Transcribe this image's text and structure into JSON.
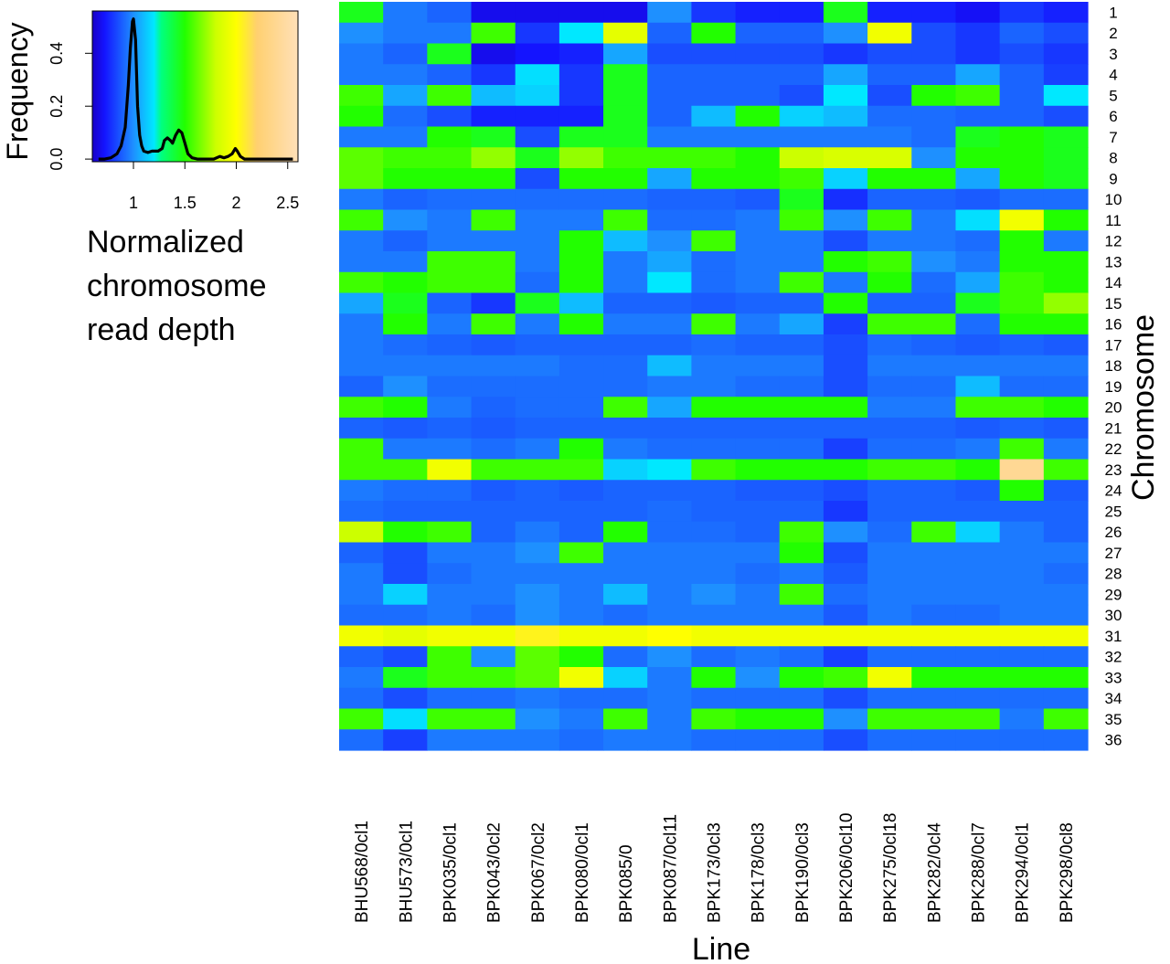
{
  "chart_data": [
    {
      "type": "area",
      "title": "",
      "xlabel": "Normalized chromosome read depth",
      "xlabel_lines": [
        "Normalized",
        "chromosome",
        "read depth"
      ],
      "ylabel": "Frequency",
      "xlim": [
        0.6,
        2.6
      ],
      "ylim": [
        -0.01,
        0.56
      ],
      "xticks": [
        1,
        1.5,
        2,
        2.5
      ],
      "xtick_labels": [
        "1",
        "1.5",
        "2",
        "2.5"
      ],
      "yticks": [
        0.0,
        0.2,
        0.4
      ],
      "ytick_labels": [
        "0.0",
        "0.2",
        "0.4"
      ],
      "color_key": {
        "stops": [
          {
            "x": 0.6,
            "color": "#1a00c8"
          },
          {
            "x": 0.72,
            "color": "#1414ff"
          },
          {
            "x": 1.0,
            "color": "#1e90ff"
          },
          {
            "x": 1.2,
            "color": "#00e8ff"
          },
          {
            "x": 1.27,
            "color": "#00ff80"
          },
          {
            "x": 1.5,
            "color": "#22ff00"
          },
          {
            "x": 1.8,
            "color": "#ccff00"
          },
          {
            "x": 2.0,
            "color": "#ffff00"
          },
          {
            "x": 2.2,
            "color": "#ffd070"
          },
          {
            "x": 2.6,
            "color": "#ffe0b8"
          }
        ]
      },
      "x": [
        0.66,
        0.72,
        0.78,
        0.84,
        0.88,
        0.92,
        0.95,
        0.97,
        0.99,
        1.0,
        1.02,
        1.04,
        1.06,
        1.08,
        1.1,
        1.14,
        1.18,
        1.24,
        1.28,
        1.3,
        1.33,
        1.36,
        1.38,
        1.41,
        1.44,
        1.47,
        1.5,
        1.53,
        1.57,
        1.62,
        1.7,
        1.78,
        1.84,
        1.88,
        1.92,
        1.96,
        1.99,
        2.01,
        2.04,
        2.08,
        2.16,
        2.3,
        2.45,
        2.55
      ],
      "y": [
        0.0,
        0.0,
        0.005,
        0.02,
        0.05,
        0.12,
        0.28,
        0.42,
        0.52,
        0.53,
        0.45,
        0.2,
        0.09,
        0.05,
        0.03,
        0.025,
        0.03,
        0.03,
        0.04,
        0.07,
        0.08,
        0.07,
        0.06,
        0.09,
        0.11,
        0.1,
        0.06,
        0.02,
        0.005,
        0.0,
        0.0,
        0.0,
        0.01,
        0.005,
        0.01,
        0.02,
        0.04,
        0.03,
        0.01,
        0.0,
        0.0,
        0.0,
        0.0,
        0.0
      ]
    },
    {
      "type": "heatmap",
      "title": "",
      "xlabel": "Line",
      "ylabel": "Chromosome",
      "columns": [
        "BHU568/0cl1",
        "BHU573/0cl1",
        "BPK035/0cl1",
        "BPK043/0cl2",
        "BPK067/0cl2",
        "BPK080/0cl1",
        "BPK085/0",
        "BPK087/0cl11",
        "BPK173/0cl3",
        "BPK178/0cl3",
        "BPK190/0cl3",
        "BPK206/0cl10",
        "BPK275/0cl18",
        "BPK282/0cl4",
        "BPK288/0cl7",
        "BPK294/0cl1",
        "BPK298/0cl8"
      ],
      "rows": [
        "1",
        "2",
        "3",
        "4",
        "5",
        "6",
        "7",
        "8",
        "9",
        "10",
        "11",
        "12",
        "13",
        "14",
        "15",
        "16",
        "17",
        "18",
        "19",
        "20",
        "21",
        "22",
        "23",
        "24",
        "25",
        "26",
        "27",
        "28",
        "29",
        "30",
        "31",
        "32",
        "33",
        "34",
        "35",
        "36"
      ],
      "values": [
        [
          1.45,
          0.95,
          0.9,
          0.68,
          0.68,
          0.68,
          0.68,
          1.0,
          0.8,
          0.75,
          0.75,
          1.45,
          0.75,
          0.75,
          0.7,
          0.8,
          0.75
        ],
        [
          1.0,
          0.95,
          0.95,
          1.55,
          0.8,
          1.2,
          1.9,
          0.9,
          1.5,
          0.9,
          0.9,
          1.0,
          1.95,
          0.85,
          0.8,
          0.9,
          0.85
        ],
        [
          0.95,
          0.9,
          1.45,
          0.68,
          0.72,
          0.75,
          1.05,
          0.85,
          0.85,
          0.85,
          0.85,
          0.8,
          0.85,
          0.85,
          0.8,
          0.85,
          0.8
        ],
        [
          0.95,
          0.95,
          0.9,
          0.8,
          1.18,
          0.8,
          1.45,
          0.9,
          0.9,
          0.9,
          0.9,
          1.05,
          0.9,
          0.9,
          1.05,
          0.9,
          0.82
        ],
        [
          1.55,
          1.05,
          1.55,
          1.1,
          1.15,
          0.8,
          1.45,
          0.9,
          0.9,
          0.9,
          0.85,
          1.2,
          0.85,
          1.5,
          1.55,
          0.9,
          1.2
        ],
        [
          1.5,
          0.92,
          0.85,
          0.75,
          0.75,
          0.75,
          1.45,
          0.9,
          1.1,
          1.5,
          1.15,
          1.1,
          0.92,
          0.92,
          0.9,
          0.9,
          0.85
        ],
        [
          0.95,
          0.95,
          1.5,
          1.45,
          0.85,
          1.45,
          1.45,
          0.95,
          0.95,
          0.95,
          0.95,
          0.95,
          0.95,
          0.92,
          1.45,
          1.5,
          1.45
        ],
        [
          1.6,
          1.55,
          1.55,
          1.7,
          1.45,
          1.7,
          1.55,
          1.55,
          1.55,
          1.5,
          1.8,
          1.85,
          1.85,
          1.0,
          1.5,
          1.5,
          1.45
        ],
        [
          1.6,
          1.5,
          1.5,
          1.5,
          0.85,
          1.5,
          1.5,
          1.05,
          1.5,
          1.5,
          1.55,
          1.15,
          1.5,
          1.5,
          1.05,
          1.5,
          1.45
        ],
        [
          0.95,
          0.9,
          0.92,
          0.92,
          0.92,
          0.92,
          0.92,
          0.9,
          0.9,
          0.88,
          1.45,
          0.78,
          0.9,
          0.9,
          0.88,
          0.92,
          0.92
        ],
        [
          1.55,
          1.0,
          0.95,
          1.55,
          0.95,
          0.95,
          1.55,
          0.92,
          0.92,
          0.95,
          1.55,
          1.0,
          1.55,
          0.95,
          1.18,
          1.95,
          1.5
        ],
        [
          0.95,
          0.9,
          0.95,
          0.95,
          0.95,
          1.5,
          1.1,
          1.0,
          1.55,
          0.95,
          0.95,
          0.85,
          0.95,
          0.95,
          0.92,
          1.5,
          0.95
        ],
        [
          0.95,
          0.95,
          1.55,
          1.55,
          0.95,
          1.5,
          0.95,
          1.05,
          0.92,
          0.95,
          0.95,
          1.5,
          1.55,
          1.0,
          0.95,
          1.5,
          1.5
        ],
        [
          1.55,
          1.5,
          1.55,
          1.55,
          0.92,
          1.5,
          0.95,
          1.2,
          0.92,
          0.95,
          1.55,
          0.95,
          1.5,
          0.92,
          1.05,
          1.55,
          1.5
        ],
        [
          1.05,
          1.45,
          0.9,
          0.8,
          1.45,
          1.1,
          0.9,
          0.9,
          0.88,
          0.9,
          0.9,
          1.5,
          0.9,
          0.9,
          1.45,
          1.55,
          1.7
        ],
        [
          0.95,
          1.5,
          0.95,
          1.55,
          0.95,
          1.5,
          0.95,
          0.95,
          1.55,
          0.95,
          1.05,
          0.82,
          1.55,
          1.55,
          0.92,
          1.5,
          1.5
        ],
        [
          0.95,
          0.92,
          0.9,
          0.88,
          0.9,
          0.9,
          0.9,
          0.9,
          0.92,
          0.9,
          0.9,
          0.85,
          0.92,
          0.9,
          0.88,
          0.9,
          0.88
        ],
        [
          0.95,
          0.95,
          0.95,
          0.95,
          0.95,
          0.92,
          0.92,
          1.1,
          0.95,
          0.95,
          0.95,
          0.85,
          0.95,
          0.95,
          0.95,
          0.95,
          0.95
        ],
        [
          0.9,
          1.0,
          0.92,
          0.92,
          0.92,
          0.92,
          0.92,
          0.95,
          0.95,
          0.92,
          0.92,
          0.85,
          0.92,
          0.92,
          1.1,
          0.92,
          0.92
        ],
        [
          1.55,
          1.5,
          0.95,
          0.9,
          0.92,
          0.92,
          1.55,
          1.05,
          1.5,
          1.5,
          1.5,
          1.5,
          0.95,
          0.95,
          1.55,
          1.55,
          1.5
        ],
        [
          0.9,
          0.88,
          0.9,
          0.88,
          0.9,
          0.9,
          0.9,
          0.9,
          0.9,
          0.9,
          0.9,
          0.9,
          0.9,
          0.9,
          0.88,
          0.9,
          0.88
        ],
        [
          1.55,
          0.95,
          0.95,
          0.92,
          0.95,
          1.5,
          0.95,
          0.92,
          0.92,
          0.92,
          0.92,
          0.82,
          0.92,
          0.92,
          0.95,
          1.55,
          0.95
        ],
        [
          1.55,
          1.55,
          1.95,
          1.55,
          1.55,
          1.55,
          1.15,
          1.2,
          1.55,
          1.5,
          1.5,
          1.5,
          1.55,
          1.55,
          1.5,
          2.4,
          1.55
        ],
        [
          0.95,
          0.92,
          0.92,
          0.88,
          0.9,
          0.88,
          0.9,
          0.9,
          0.9,
          0.88,
          0.88,
          0.85,
          0.9,
          0.9,
          0.88,
          1.5,
          0.88
        ],
        [
          0.92,
          0.9,
          0.9,
          0.9,
          0.9,
          0.9,
          0.9,
          0.92,
          0.9,
          0.9,
          0.9,
          0.8,
          0.9,
          0.9,
          0.9,
          0.9,
          0.9
        ],
        [
          1.8,
          1.5,
          1.55,
          0.9,
          0.95,
          0.9,
          1.5,
          0.92,
          0.92,
          0.9,
          1.55,
          1.0,
          0.92,
          1.55,
          1.15,
          0.95,
          0.9
        ],
        [
          0.9,
          0.85,
          0.95,
          0.95,
          1.0,
          1.55,
          0.95,
          0.95,
          0.95,
          0.95,
          1.5,
          0.85,
          0.95,
          0.95,
          0.95,
          0.95,
          0.95
        ],
        [
          0.95,
          0.85,
          0.92,
          0.95,
          0.95,
          0.95,
          0.95,
          0.95,
          0.95,
          0.92,
          0.95,
          0.88,
          0.95,
          0.95,
          0.95,
          0.95,
          0.92
        ],
        [
          0.95,
          1.15,
          0.95,
          0.95,
          1.0,
          0.95,
          1.1,
          0.95,
          1.0,
          0.95,
          1.55,
          0.92,
          0.95,
          0.95,
          0.95,
          0.95,
          0.95
        ],
        [
          0.92,
          0.92,
          0.95,
          0.92,
          1.0,
          0.95,
          0.92,
          0.95,
          0.95,
          0.95,
          0.95,
          0.88,
          0.95,
          0.92,
          0.92,
          0.95,
          0.95
        ],
        [
          1.95,
          1.9,
          1.95,
          1.95,
          2.05,
          1.95,
          1.95,
          2.0,
          1.95,
          1.95,
          1.95,
          1.95,
          1.95,
          1.95,
          1.95,
          1.95,
          1.95
        ],
        [
          0.9,
          0.85,
          1.55,
          1.0,
          1.6,
          1.5,
          0.92,
          1.0,
          0.92,
          0.95,
          0.92,
          0.82,
          0.92,
          0.92,
          0.92,
          0.92,
          0.92
        ],
        [
          0.95,
          1.45,
          1.55,
          1.55,
          1.6,
          1.95,
          1.15,
          0.95,
          1.5,
          1.0,
          1.5,
          1.55,
          1.95,
          1.5,
          1.5,
          1.5,
          1.5
        ],
        [
          0.92,
          0.85,
          0.92,
          0.92,
          0.95,
          0.92,
          0.92,
          0.95,
          0.92,
          0.92,
          0.92,
          0.85,
          0.92,
          0.92,
          0.92,
          0.92,
          0.92
        ],
        [
          1.55,
          1.18,
          1.55,
          1.55,
          1.0,
          0.95,
          1.55,
          0.95,
          1.55,
          1.5,
          1.5,
          1.0,
          1.55,
          1.55,
          1.55,
          0.95,
          1.55
        ],
        [
          0.92,
          0.82,
          0.95,
          0.95,
          0.95,
          0.92,
          0.95,
          0.95,
          0.92,
          0.92,
          0.92,
          0.85,
          0.92,
          0.92,
          0.92,
          0.92,
          0.92
        ]
      ]
    }
  ]
}
